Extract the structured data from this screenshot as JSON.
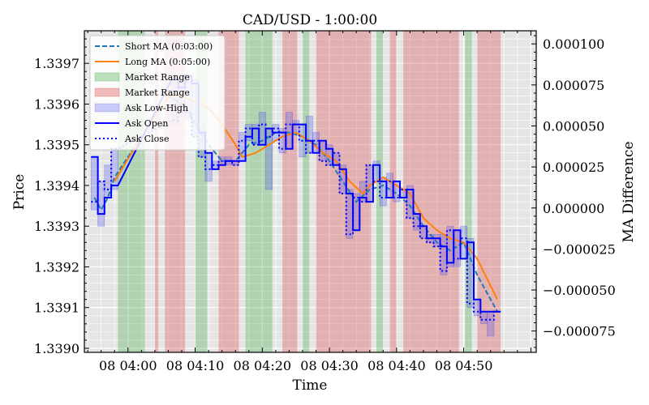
{
  "chart_data": {
    "type": "line",
    "title": "CAD/USD - 1:00:00",
    "xlabel": "Time",
    "ylabel": "Price",
    "y2label": "MA Difference",
    "x_range_minutes": [
      -6.5,
      60.8
    ],
    "ylim": [
      1.33899,
      1.33978
    ],
    "y2lim": [
      -8.8e-05,
      0.000108
    ],
    "x_ticks": [
      {
        "t": 0,
        "label": "08 04:00"
      },
      {
        "t": 10,
        "label": "08 04:10"
      },
      {
        "t": 20,
        "label": "08 04:20"
      },
      {
        "t": 30,
        "label": "08 04:30"
      },
      {
        "t": 40,
        "label": "08 04:40"
      },
      {
        "t": 50,
        "label": "08 04:50"
      }
    ],
    "y_ticks": [
      "1.3390",
      "1.3391",
      "1.3392",
      "1.3393",
      "1.3394",
      "1.3395",
      "1.3396",
      "1.3397"
    ],
    "y2_ticks": [
      "0.000100",
      "0.000075",
      "0.000050",
      "0.000025",
      "0.000000",
      "−0.000025",
      "−0.000050",
      "−0.000075"
    ],
    "grid": true,
    "legend_position": "top-left",
    "legend": [
      {
        "label": "Short MA (0:03:00)",
        "kind": "dashed",
        "color": "#1f77b4"
      },
      {
        "label": "Long MA (0:05:00)",
        "kind": "line",
        "color": "#ff7f0e"
      },
      {
        "label": "Market Range",
        "kind": "patch",
        "color": "#2ca02c"
      },
      {
        "label": "Market Range",
        "kind": "patch",
        "color": "#d62728"
      },
      {
        "label": "Ask Low-High",
        "kind": "patch",
        "color": "#0000ff"
      },
      {
        "label": "Ask Open",
        "kind": "line",
        "color": "#0000ff"
      },
      {
        "label": "Ask Close",
        "kind": "dotted",
        "color": "#0000ff"
      }
    ],
    "market_ranges": [
      {
        "start": -1.5,
        "end": 2.5,
        "color": "green"
      },
      {
        "start": 4.0,
        "end": 4.5,
        "color": "red"
      },
      {
        "start": 5.5,
        "end": 8.5,
        "color": "red"
      },
      {
        "start": 10.0,
        "end": 11.8,
        "color": "green"
      },
      {
        "start": 13.5,
        "end": 16.5,
        "color": "red"
      },
      {
        "start": 17.5,
        "end": 21.5,
        "color": "green"
      },
      {
        "start": 23.0,
        "end": 25.2,
        "color": "red"
      },
      {
        "start": 26.0,
        "end": 27.0,
        "color": "green"
      },
      {
        "start": 28.0,
        "end": 36.2,
        "color": "red"
      },
      {
        "start": 37.0,
        "end": 38.0,
        "color": "green"
      },
      {
        "start": 39.0,
        "end": 40.0,
        "color": "red"
      },
      {
        "start": 41.0,
        "end": 49.3,
        "color": "red"
      },
      {
        "start": 50.2,
        "end": 51.2,
        "color": "green"
      },
      {
        "start": 52.0,
        "end": 55.5,
        "color": "red"
      }
    ],
    "candles": [
      {
        "t": -5,
        "open": 1.33947,
        "close": 1.33936,
        "low": 1.33934,
        "high": 1.33947
      },
      {
        "t": -4,
        "open": 1.33933,
        "close": 1.33941,
        "low": 1.3393,
        "high": 1.33941
      },
      {
        "t": -3,
        "open": 1.33937,
        "close": 1.33939,
        "low": 1.33937,
        "high": 1.33945
      },
      {
        "t": -2,
        "open": 1.3394,
        "close": 1.33949,
        "low": 1.33939,
        "high": 1.33949
      },
      {
        "t": 7,
        "open": 1.33966,
        "close": 1.33956,
        "low": 1.33955,
        "high": 1.33967
      },
      {
        "t": 8,
        "open": 1.33964,
        "close": 1.33958,
        "low": 1.33958,
        "high": 1.33966
      },
      {
        "t": 9,
        "open": 1.33967,
        "close": 1.33958,
        "low": 1.33956,
        "high": 1.33967
      },
      {
        "t": 10,
        "open": 1.33965,
        "close": 1.33952,
        "low": 1.33952,
        "high": 1.33966
      },
      {
        "t": 11,
        "open": 1.33953,
        "close": 1.33947,
        "low": 1.33947,
        "high": 1.33954
      },
      {
        "t": 12,
        "open": 1.33948,
        "close": 1.33944,
        "low": 1.33941,
        "high": 1.33948
      },
      {
        "t": 13,
        "open": 1.33944,
        "close": 1.33945,
        "low": 1.33944,
        "high": 1.33946
      },
      {
        "t": 14,
        "open": 1.33945,
        "close": 1.33946,
        "low": 1.33945,
        "high": 1.33947
      },
      {
        "t": 15,
        "open": 1.33946,
        "close": 1.33946,
        "low": 1.33945,
        "high": 1.33947
      },
      {
        "t": 16,
        "open": 1.33946,
        "close": 1.33945,
        "low": 1.33945,
        "high": 1.33946
      },
      {
        "t": 17,
        "open": 1.33946,
        "close": 1.33951,
        "low": 1.33946,
        "high": 1.33953
      },
      {
        "t": 18,
        "open": 1.33952,
        "close": 1.33954,
        "low": 1.33951,
        "high": 1.33955
      },
      {
        "t": 19,
        "open": 1.33954,
        "close": 1.3395,
        "low": 1.3395,
        "high": 1.33955
      },
      {
        "t": 20,
        "open": 1.3395,
        "close": 1.33955,
        "low": 1.3395,
        "high": 1.33958
      },
      {
        "t": 21,
        "open": 1.33954,
        "close": 1.33952,
        "low": 1.33939,
        "high": 1.33954
      },
      {
        "t": 22,
        "open": 1.33953,
        "close": 1.33954,
        "low": 1.33951,
        "high": 1.33955
      },
      {
        "t": 23,
        "open": 1.33953,
        "close": 1.33949,
        "low": 1.33948,
        "high": 1.33954
      },
      {
        "t": 24,
        "open": 1.33949,
        "close": 1.33955,
        "low": 1.33949,
        "high": 1.33958
      },
      {
        "t": 25,
        "open": 1.33955,
        "close": 1.33955,
        "low": 1.33953,
        "high": 1.33956
      },
      {
        "t": 26,
        "open": 1.33955,
        "close": 1.33951,
        "low": 1.33947,
        "high": 1.33955
      },
      {
        "t": 27,
        "open": 1.33951,
        "close": 1.33948,
        "low": 1.33948,
        "high": 1.33957
      },
      {
        "t": 28,
        "open": 1.33948,
        "close": 1.33951,
        "low": 1.33948,
        "high": 1.33953
      },
      {
        "t": 29,
        "open": 1.33951,
        "close": 1.33946,
        "low": 1.33946,
        "high": 1.33951
      },
      {
        "t": 30,
        "open": 1.33949,
        "close": 1.33945,
        "low": 1.33945,
        "high": 1.3395
      },
      {
        "t": 31,
        "open": 1.33945,
        "close": 1.33948,
        "low": 1.33945,
        "high": 1.33948
      },
      {
        "t": 32,
        "open": 1.33944,
        "close": 1.33938,
        "low": 1.33938,
        "high": 1.33945
      },
      {
        "t": 33,
        "open": 1.33938,
        "close": 1.33928,
        "low": 1.33927,
        "high": 1.33939
      },
      {
        "t": 34,
        "open": 1.33929,
        "close": 1.33937,
        "low": 1.33929,
        "high": 1.33938
      },
      {
        "t": 35,
        "open": 1.33937,
        "close": 1.33936,
        "low": 1.33936,
        "high": 1.33941
      },
      {
        "t": 36,
        "open": 1.33936,
        "close": 1.33945,
        "low": 1.33936,
        "high": 1.33945
      },
      {
        "t": 37,
        "open": 1.33945,
        "close": 1.33941,
        "low": 1.33941,
        "high": 1.33946
      },
      {
        "t": 38,
        "open": 1.33941,
        "close": 1.33937,
        "low": 1.33935,
        "high": 1.33942
      },
      {
        "t": 39,
        "open": 1.33937,
        "close": 1.33941,
        "low": 1.33937,
        "high": 1.33943
      },
      {
        "t": 40,
        "open": 1.33941,
        "close": 1.33937,
        "low": 1.33936,
        "high": 1.33941
      },
      {
        "t": 41,
        "open": 1.33937,
        "close": 1.33939,
        "low": 1.33937,
        "high": 1.33939
      },
      {
        "t": 42,
        "open": 1.33939,
        "close": 1.33932,
        "low": 1.33932,
        "high": 1.3394
      },
      {
        "t": 43,
        "open": 1.33933,
        "close": 1.3393,
        "low": 1.33929,
        "high": 1.33933
      },
      {
        "t": 44,
        "open": 1.3393,
        "close": 1.33927,
        "low": 1.33927,
        "high": 1.3393
      },
      {
        "t": 45,
        "open": 1.33927,
        "close": 1.33926,
        "low": 1.33926,
        "high": 1.33928
      },
      {
        "t": 46,
        "open": 1.33927,
        "close": 1.33925,
        "low": 1.33925,
        "high": 1.33928
      },
      {
        "t": 47,
        "open": 1.33925,
        "close": 1.33919,
        "low": 1.33918,
        "high": 1.33928
      },
      {
        "t": 48,
        "open": 1.33921,
        "close": 1.33929,
        "low": 1.3392,
        "high": 1.3393
      },
      {
        "t": 49,
        "open": 1.33929,
        "close": 1.33922,
        "low": 1.3392,
        "high": 1.33929
      },
      {
        "t": 50,
        "open": 1.33922,
        "close": 1.33927,
        "low": 1.33922,
        "high": 1.3393
      },
      {
        "t": 51,
        "open": 1.33926,
        "close": 1.33911,
        "low": 1.3391,
        "high": 1.33927
      },
      {
        "t": 52,
        "open": 1.33912,
        "close": 1.33909,
        "low": 1.33908,
        "high": 1.33912
      },
      {
        "t": 53,
        "open": 1.33909,
        "close": 1.33907,
        "low": 1.33906,
        "high": 1.33909
      },
      {
        "t": 54,
        "open": 1.33909,
        "close": 1.33907,
        "low": 1.33903,
        "high": 1.33909
      },
      {
        "t": 55,
        "open": 1.33909,
        "close": 1.33909,
        "low": 1.33909,
        "high": 1.33909
      }
    ],
    "series": [
      {
        "name": "Short MA (0:03:00)",
        "color": "#1f77b4",
        "dash": "6,3",
        "points": [
          [
            -5,
            1.33937
          ],
          [
            -4,
            1.33934
          ],
          [
            -3,
            1.33937
          ],
          [
            -2,
            1.33942
          ],
          [
            2,
            1.33952
          ],
          [
            6,
            1.33962
          ],
          [
            8,
            1.3396
          ],
          [
            9,
            1.33958
          ],
          [
            10,
            1.33955
          ],
          [
            12,
            1.3395
          ],
          [
            14,
            1.33946
          ],
          [
            16,
            1.33946
          ],
          [
            18,
            1.3395
          ],
          [
            20,
            1.33951
          ],
          [
            22,
            1.33953
          ],
          [
            24,
            1.33953
          ],
          [
            26,
            1.33952
          ],
          [
            28,
            1.3395
          ],
          [
            30,
            1.33946
          ],
          [
            32,
            1.33941
          ],
          [
            34,
            1.33936
          ],
          [
            36,
            1.33939
          ],
          [
            38,
            1.3394
          ],
          [
            40,
            1.33938
          ],
          [
            42,
            1.33935
          ],
          [
            44,
            1.3393
          ],
          [
            46,
            1.33926
          ],
          [
            48,
            1.33924
          ],
          [
            50,
            1.33926
          ],
          [
            52,
            1.33918
          ],
          [
            55,
            1.33909
          ]
        ]
      },
      {
        "name": "Long MA (0:05:00)",
        "color": "#ff7f0e",
        "dash": "",
        "points": [
          [
            -2,
            1.33941
          ],
          [
            2,
            1.33952
          ],
          [
            6,
            1.33962
          ],
          [
            8,
            1.33962
          ],
          [
            12,
            1.33959
          ],
          [
            14,
            1.33955
          ],
          [
            16,
            1.3395
          ],
          [
            17,
            1.33947
          ],
          [
            19,
            1.33948
          ],
          [
            21,
            1.3395
          ],
          [
            23,
            1.33952
          ],
          [
            25,
            1.33953
          ],
          [
            27,
            1.33951
          ],
          [
            29,
            1.33948
          ],
          [
            31,
            1.33946
          ],
          [
            33,
            1.33941
          ],
          [
            35,
            1.33938
          ],
          [
            36,
            1.3394
          ],
          [
            38,
            1.33942
          ],
          [
            40,
            1.3394
          ],
          [
            42,
            1.33938
          ],
          [
            44,
            1.33932
          ],
          [
            46,
            1.33929
          ],
          [
            48,
            1.33927
          ],
          [
            50,
            1.33926
          ],
          [
            52,
            1.33922
          ],
          [
            55,
            1.33912
          ]
        ]
      }
    ]
  }
}
